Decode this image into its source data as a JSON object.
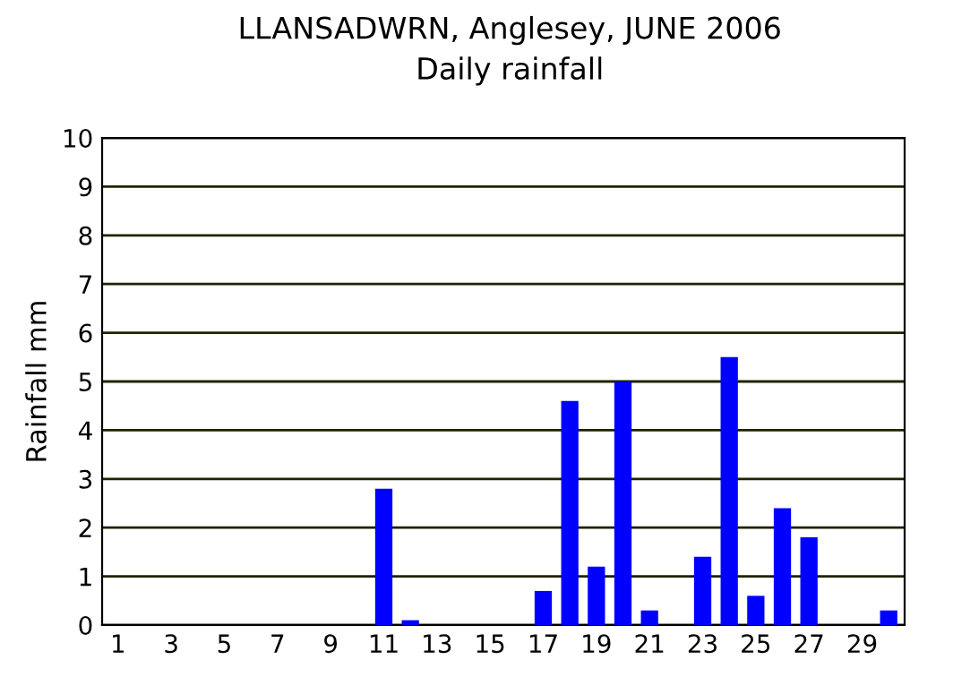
{
  "chart_data": {
    "type": "bar",
    "title": "LLANSADWRN, Anglesey, JUNE 2006",
    "subtitle": "Daily rainfall",
    "ylabel": "Rainfall mm",
    "categories": [
      "1",
      null,
      "3",
      null,
      "5",
      null,
      "7",
      null,
      "9",
      null,
      "11",
      null,
      "13",
      null,
      "15",
      null,
      "17",
      null,
      "19",
      null,
      "21",
      null,
      "23",
      null,
      "25",
      null,
      "27",
      null,
      "29",
      null
    ],
    "values": [
      0,
      0,
      0,
      0,
      0,
      0,
      0,
      0,
      0,
      0,
      2.8,
      0.1,
      0,
      0,
      0,
      0,
      0.7,
      4.6,
      1.2,
      5.0,
      0.3,
      0,
      1.4,
      5.5,
      0.6,
      2.4,
      1.8,
      0,
      0,
      0.3
    ],
    "color": "#0000ff",
    "ylim": [
      0,
      10
    ],
    "yticks": [
      0,
      1,
      2,
      3,
      4,
      5,
      6,
      7,
      8,
      9,
      10
    ],
    "grid": "y"
  }
}
